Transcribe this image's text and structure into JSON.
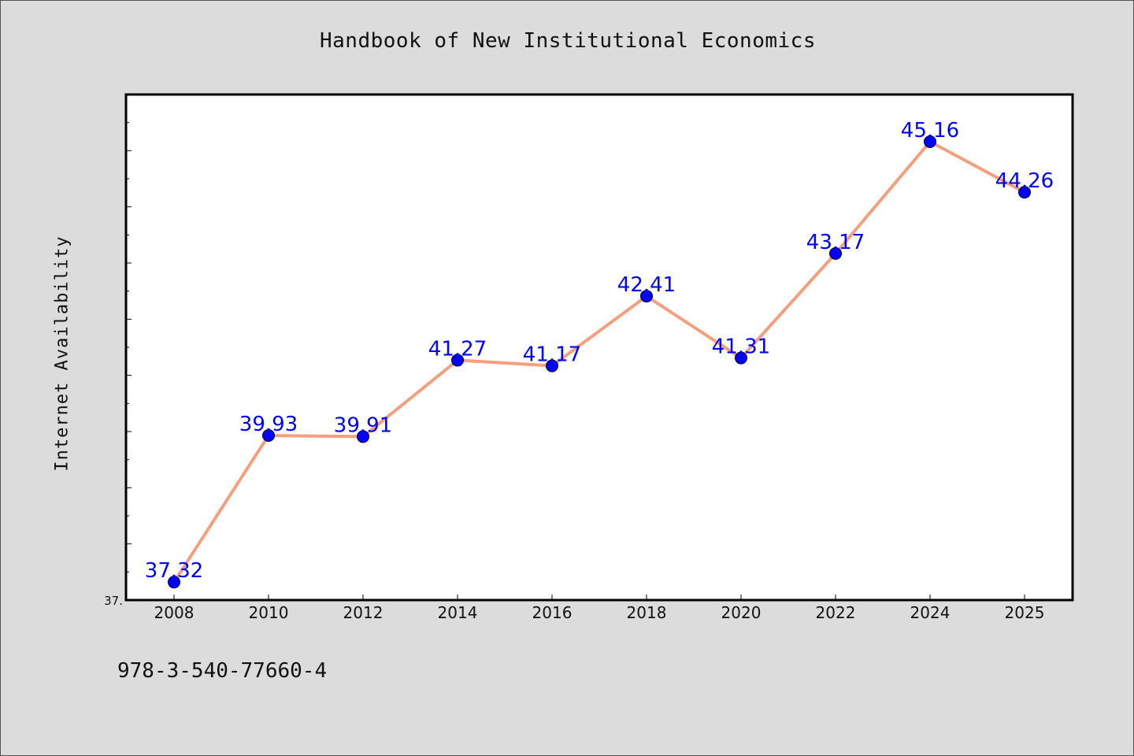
{
  "chart_data": {
    "type": "line",
    "title": "Handbook of New Institutional Economics",
    "xlabel": "",
    "ylabel": "Internet Availability",
    "categories": [
      "2008",
      "2010",
      "2012",
      "2014",
      "2016",
      "2018",
      "2020",
      "2022",
      "2024",
      "2025"
    ],
    "series": [
      {
        "values": [
          37.32,
          39.93,
          39.91,
          41.27,
          41.17,
          42.41,
          41.31,
          43.17,
          45.16,
          44.26
        ],
        "labels": [
          "37.32",
          "39.93",
          "39.91",
          "41.27",
          "41.17",
          "42.41",
          "41.31",
          "43.17",
          "45.16",
          "44.26"
        ],
        "line_color": "#f4a07f",
        "marker_color": "#0000ff",
        "label_color": "#0000ff"
      }
    ],
    "ylim": [
      37.0,
      46.0
    ],
    "y_tick_label": "37.",
    "grid": false,
    "legend": "none"
  },
  "footer": {
    "text": "978-3-540-77660-4"
  }
}
